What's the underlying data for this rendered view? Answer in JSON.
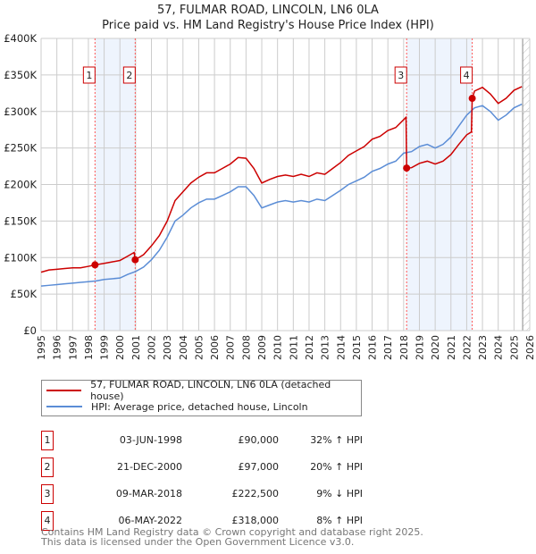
{
  "title": "57, FULMAR ROAD, LINCOLN, LN6 0LA",
  "subtitle": "Price paid vs. HM Land Registry's House Price Index (HPI)",
  "chart_data": {
    "type": "line",
    "title": "57, FULMAR ROAD, LINCOLN, LN6 0LA",
    "subtitle": "Price paid vs. HM Land Registry's House Price Index (HPI)",
    "xlim": [
      1995,
      2026
    ],
    "ylim": [
      0,
      400000
    ],
    "x_ticks": [
      "1995",
      "1996",
      "1997",
      "1998",
      "1999",
      "2000",
      "2001",
      "2002",
      "2003",
      "2004",
      "2005",
      "2006",
      "2007",
      "2008",
      "2009",
      "2010",
      "2011",
      "2012",
      "2013",
      "2014",
      "2015",
      "2016",
      "2017",
      "2018",
      "2019",
      "2020",
      "2021",
      "2022",
      "2023",
      "2024",
      "2025",
      "2026"
    ],
    "y_ticks": [
      {
        "v": 0,
        "label": "£0"
      },
      {
        "v": 50000,
        "label": "£50K"
      },
      {
        "v": 100000,
        "label": "£100K"
      },
      {
        "v": 150000,
        "label": "£150K"
      },
      {
        "v": 200000,
        "label": "£200K"
      },
      {
        "v": 250000,
        "label": "£250K"
      },
      {
        "v": 300000,
        "label": "£300K"
      },
      {
        "v": 350000,
        "label": "£350K"
      },
      {
        "v": 400000,
        "label": "£400K"
      }
    ],
    "grid": true,
    "colors": {
      "property": "#cc0000",
      "hpi": "#5b8dd6",
      "shade": "#eef4fd"
    },
    "series": [
      {
        "name": "57, FULMAR ROAD, LINCOLN, LN6 0LA (detached house)",
        "color": "#cc0000",
        "x": [
          1995,
          1995.5,
          1996,
          1996.5,
          1997,
          1997.5,
          1998,
          1998.42,
          1999,
          1999.5,
          2000,
          2000.5,
          2000.9,
          2000.97,
          2001.5,
          2002,
          2002.5,
          2003,
          2003.5,
          2004,
          2004.5,
          2005,
          2005.5,
          2006,
          2006.5,
          2007,
          2007.5,
          2008,
          2008.5,
          2009,
          2009.5,
          2010,
          2010.5,
          2011,
          2011.5,
          2012,
          2012.5,
          2013,
          2013.5,
          2014,
          2014.5,
          2015,
          2015.5,
          2016,
          2016.5,
          2017,
          2017.5,
          2018.15,
          2018.19,
          2018.5,
          2019,
          2019.5,
          2020,
          2020.5,
          2021,
          2021.5,
          2022,
          2022.3,
          2022.35,
          2022.5,
          2023,
          2023.5,
          2024,
          2024.5,
          2025,
          2025.5
        ],
        "y": [
          80000,
          83000,
          84000,
          85000,
          86000,
          86000,
          88000,
          90000,
          92000,
          94000,
          96000,
          102000,
          107000,
          97000,
          104000,
          116000,
          130000,
          150000,
          178000,
          190000,
          202000,
          210000,
          216000,
          216000,
          222000,
          228000,
          237000,
          236000,
          222000,
          202000,
          207000,
          211000,
          213000,
          211000,
          214000,
          211000,
          216000,
          214000,
          222000,
          230000,
          240000,
          246000,
          252000,
          262000,
          266000,
          274000,
          278000,
          292000,
          222500,
          223000,
          229000,
          232000,
          228000,
          232000,
          241000,
          255000,
          268000,
          272000,
          318000,
          328000,
          333000,
          324000,
          311000,
          318000,
          329000,
          334000
        ]
      },
      {
        "name": "HPI: Average price, detached house, Lincoln",
        "color": "#5b8dd6",
        "x": [
          1995,
          1995.5,
          1996,
          1996.5,
          1997,
          1997.5,
          1998,
          1998.5,
          1999,
          1999.5,
          2000,
          2000.5,
          2001,
          2001.5,
          2002,
          2002.5,
          2003,
          2003.5,
          2004,
          2004.5,
          2005,
          2005.5,
          2006,
          2006.5,
          2007,
          2007.5,
          2008,
          2008.5,
          2009,
          2009.5,
          2010,
          2010.5,
          2011,
          2011.5,
          2012,
          2012.5,
          2013,
          2013.5,
          2014,
          2014.5,
          2015,
          2015.5,
          2016,
          2016.5,
          2017,
          2017.5,
          2018,
          2018.5,
          2019,
          2019.5,
          2020,
          2020.5,
          2021,
          2021.5,
          2022,
          2022.5,
          2023,
          2023.5,
          2024,
          2024.5,
          2025,
          2025.5
        ],
        "y": [
          61000,
          62000,
          63000,
          64000,
          65000,
          66000,
          67000,
          68000,
          70000,
          71000,
          72000,
          77000,
          81000,
          87000,
          97000,
          110000,
          128000,
          150000,
          158000,
          168000,
          175000,
          180000,
          180000,
          185000,
          190000,
          197000,
          197000,
          185000,
          168000,
          172000,
          176000,
          178000,
          176000,
          178000,
          176000,
          180000,
          178000,
          185000,
          192000,
          200000,
          205000,
          210000,
          218000,
          222000,
          228000,
          232000,
          243000,
          245000,
          252000,
          255000,
          250000,
          255000,
          265000,
          280000,
          295000,
          305000,
          308000,
          300000,
          288000,
          295000,
          305000,
          310000
        ]
      }
    ],
    "sales": [
      {
        "n": "1",
        "x": 1998.42,
        "price": 90000,
        "date": "03-JUN-1998",
        "price_label": "£90,000",
        "hpi": "32% ↑ HPI"
      },
      {
        "n": "2",
        "x": 2000.97,
        "price": 97000,
        "date": "21-DEC-2000",
        "price_label": "£97,000",
        "hpi": "20% ↑ HPI"
      },
      {
        "n": "3",
        "x": 2018.19,
        "price": 222500,
        "date": "09-MAR-2018",
        "price_label": "£222,500",
        "hpi": "9% ↓ HPI"
      },
      {
        "n": "4",
        "x": 2022.35,
        "price": 318000,
        "date": "06-MAY-2022",
        "price_label": "£318,000",
        "hpi": "8% ↑ HPI"
      }
    ],
    "data_end": 2025.55,
    "legend_position": "below"
  },
  "legend": {
    "property": "57, FULMAR ROAD, LINCOLN, LN6 0LA (detached house)",
    "hpi": "HPI: Average price, detached house, Lincoln"
  },
  "footer": [
    "Contains HM Land Registry data © Crown copyright and database right 2025.",
    "This data is licensed under the Open Government Licence v3.0."
  ]
}
